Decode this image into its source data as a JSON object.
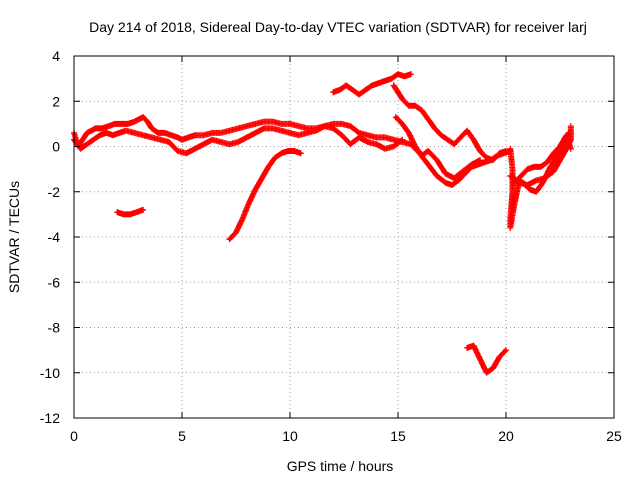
{
  "chart_data": {
    "type": "scatter",
    "title": "Day 214 of 2018, Sidereal Day-to-day VTEC variation (SDTVAR) for receiver larj",
    "xlabel": "GPS time / hours",
    "ylabel": "SDTVAR / TECUs",
    "xlim": [
      0,
      25
    ],
    "ylim": [
      -12,
      4
    ],
    "xticks": [
      0,
      5,
      10,
      15,
      20,
      25
    ],
    "yticks": [
      -12,
      -10,
      -8,
      -6,
      -4,
      -2,
      0,
      2,
      4
    ],
    "grid": true,
    "marker": "+",
    "series": [
      {
        "name": "SDTVAR",
        "color": "#ff0000",
        "segments": [
          [
            [
              0.0,
              0.6
            ],
            [
              0.2,
              0.0
            ],
            [
              0.4,
              0.3
            ],
            [
              0.6,
              0.6
            ],
            [
              0.8,
              0.7
            ],
            [
              1.0,
              0.8
            ],
            [
              1.3,
              0.8
            ],
            [
              1.6,
              0.9
            ],
            [
              1.9,
              1.0
            ],
            [
              2.2,
              1.0
            ],
            [
              2.5,
              1.0
            ],
            [
              2.8,
              1.1
            ],
            [
              3.0,
              1.2
            ],
            [
              3.2,
              1.3
            ],
            [
              3.4,
              1.1
            ],
            [
              3.6,
              0.8
            ],
            [
              3.9,
              0.6
            ],
            [
              4.2,
              0.6
            ],
            [
              4.5,
              0.5
            ],
            [
              4.8,
              0.4
            ],
            [
              5.0,
              0.3
            ],
            [
              5.3,
              0.4
            ],
            [
              5.6,
              0.5
            ],
            [
              6.0,
              0.5
            ],
            [
              6.4,
              0.6
            ],
            [
              6.8,
              0.6
            ],
            [
              7.2,
              0.7
            ],
            [
              7.6,
              0.8
            ],
            [
              8.0,
              0.9
            ],
            [
              8.4,
              1.0
            ],
            [
              8.8,
              1.1
            ],
            [
              9.2,
              1.1
            ],
            [
              9.6,
              1.0
            ],
            [
              10.0,
              1.0
            ],
            [
              10.4,
              0.9
            ],
            [
              10.8,
              0.8
            ],
            [
              11.2,
              0.8
            ],
            [
              11.6,
              0.9
            ],
            [
              12.0,
              1.0
            ],
            [
              12.4,
              1.0
            ],
            [
              12.8,
              0.9
            ],
            [
              13.2,
              0.6
            ],
            [
              13.6,
              0.5
            ],
            [
              14.0,
              0.4
            ],
            [
              14.4,
              0.4
            ],
            [
              14.8,
              0.3
            ],
            [
              15.2,
              0.2
            ],
            [
              15.6,
              0.1
            ],
            [
              16.0,
              -0.3
            ],
            [
              16.4,
              -0.8
            ],
            [
              16.8,
              -1.3
            ],
            [
              17.2,
              -1.6
            ],
            [
              17.5,
              -1.7
            ],
            [
              17.8,
              -1.5
            ],
            [
              18.1,
              -1.2
            ],
            [
              18.4,
              -0.9
            ],
            [
              18.7,
              -0.8
            ],
            [
              19.0,
              -0.7
            ],
            [
              19.3,
              -0.6
            ],
            [
              19.6,
              -0.4
            ],
            [
              19.9,
              -0.3
            ],
            [
              20.2,
              -0.2
            ]
          ],
          [
            [
              0.0,
              0.3
            ],
            [
              0.3,
              -0.1
            ],
            [
              0.6,
              0.1
            ],
            [
              0.9,
              0.3
            ],
            [
              1.2,
              0.5
            ],
            [
              1.5,
              0.6
            ],
            [
              1.8,
              0.5
            ],
            [
              2.1,
              0.6
            ],
            [
              2.4,
              0.7
            ],
            [
              2.8,
              0.6
            ],
            [
              3.2,
              0.5
            ],
            [
              3.6,
              0.4
            ],
            [
              4.0,
              0.3
            ],
            [
              4.4,
              0.2
            ],
            [
              4.8,
              -0.2
            ],
            [
              5.2,
              -0.3
            ],
            [
              5.6,
              -0.1
            ],
            [
              6.0,
              0.1
            ],
            [
              6.4,
              0.3
            ],
            [
              6.8,
              0.2
            ],
            [
              7.2,
              0.1
            ],
            [
              7.6,
              0.2
            ],
            [
              8.0,
              0.4
            ],
            [
              8.4,
              0.6
            ],
            [
              8.8,
              0.8
            ],
            [
              9.2,
              0.8
            ],
            [
              9.6,
              0.7
            ],
            [
              10.0,
              0.6
            ],
            [
              10.4,
              0.5
            ],
            [
              10.8,
              0.6
            ],
            [
              11.2,
              0.7
            ],
            [
              11.6,
              0.9
            ],
            [
              12.0,
              0.8
            ],
            [
              12.4,
              0.5
            ],
            [
              12.8,
              0.1
            ],
            [
              13.2,
              0.4
            ],
            [
              13.6,
              0.2
            ],
            [
              14.0,
              0.1
            ],
            [
              14.4,
              -0.1
            ],
            [
              14.8,
              0.0
            ],
            [
              15.2,
              0.3
            ]
          ],
          [
            [
              2.0,
              -2.9
            ],
            [
              2.3,
              -3.0
            ],
            [
              2.6,
              -3.0
            ],
            [
              2.9,
              -2.9
            ],
            [
              3.2,
              -2.8
            ]
          ],
          [
            [
              7.2,
              -4.1
            ],
            [
              7.5,
              -3.8
            ],
            [
              7.8,
              -3.2
            ],
            [
              8.1,
              -2.5
            ],
            [
              8.4,
              -1.9
            ],
            [
              8.7,
              -1.4
            ],
            [
              9.0,
              -0.9
            ],
            [
              9.3,
              -0.5
            ],
            [
              9.6,
              -0.3
            ],
            [
              9.9,
              -0.2
            ],
            [
              10.2,
              -0.2
            ],
            [
              10.5,
              -0.3
            ]
          ],
          [
            [
              12.0,
              2.4
            ],
            [
              12.3,
              2.5
            ],
            [
              12.6,
              2.7
            ],
            [
              12.9,
              2.5
            ],
            [
              13.2,
              2.3
            ],
            [
              13.5,
              2.5
            ],
            [
              13.8,
              2.7
            ],
            [
              14.1,
              2.8
            ],
            [
              14.4,
              2.9
            ],
            [
              14.7,
              3.0
            ],
            [
              15.0,
              3.2
            ],
            [
              15.3,
              3.1
            ],
            [
              15.6,
              3.2
            ]
          ],
          [
            [
              14.8,
              2.7
            ],
            [
              15.0,
              2.4
            ],
            [
              15.2,
              2.1
            ],
            [
              15.5,
              1.8
            ],
            [
              15.8,
              1.8
            ],
            [
              16.1,
              1.6
            ],
            [
              16.4,
              1.2
            ],
            [
              16.7,
              0.8
            ],
            [
              17.0,
              0.5
            ],
            [
              17.3,
              0.3
            ],
            [
              17.6,
              0.1
            ],
            [
              17.9,
              0.4
            ],
            [
              18.2,
              0.7
            ],
            [
              18.5,
              0.3
            ],
            [
              18.8,
              -0.2
            ],
            [
              19.1,
              -0.5
            ],
            [
              19.4,
              -0.6
            ],
            [
              19.7,
              -0.3
            ],
            [
              20.0,
              -0.2
            ]
          ],
          [
            [
              14.9,
              1.3
            ],
            [
              15.2,
              1.0
            ],
            [
              15.5,
              0.6
            ],
            [
              15.8,
              0.0
            ],
            [
              16.1,
              -0.4
            ],
            [
              16.4,
              -0.2
            ],
            [
              16.8,
              -0.6
            ],
            [
              17.2,
              -1.2
            ],
            [
              17.6,
              -1.4
            ],
            [
              18.0,
              -1.1
            ],
            [
              18.4,
              -0.8
            ],
            [
              18.8,
              -0.6
            ]
          ],
          [
            [
              18.2,
              -8.9
            ],
            [
              18.5,
              -8.8
            ],
            [
              18.8,
              -9.4
            ],
            [
              19.1,
              -10.0
            ],
            [
              19.4,
              -9.8
            ],
            [
              19.7,
              -9.3
            ],
            [
              20.0,
              -9.0
            ]
          ],
          [
            [
              20.2,
              -0.1
            ],
            [
              20.3,
              -1.0
            ],
            [
              20.3,
              -2.0
            ],
            [
              20.2,
              -3.2
            ],
            [
              20.2,
              -3.6
            ],
            [
              20.4,
              -2.5
            ],
            [
              20.6,
              -1.6
            ],
            [
              21.0,
              -1.7
            ],
            [
              21.4,
              -1.5
            ],
            [
              21.8,
              -1.4
            ],
            [
              22.2,
              -1.1
            ],
            [
              22.5,
              -0.6
            ],
            [
              22.8,
              -0.1
            ],
            [
              23.0,
              0.3
            ],
            [
              23.0,
              0.9
            ]
          ],
          [
            [
              20.2,
              -1.3
            ],
            [
              20.5,
              -1.5
            ],
            [
              20.8,
              -1.6
            ],
            [
              21.1,
              -1.9
            ],
            [
              21.4,
              -2.0
            ],
            [
              21.7,
              -1.6
            ],
            [
              22.0,
              -1.0
            ],
            [
              22.3,
              -0.5
            ],
            [
              22.6,
              0.0
            ],
            [
              22.9,
              0.6
            ]
          ],
          [
            [
              20.4,
              -1.6
            ],
            [
              20.7,
              -1.3
            ],
            [
              21.0,
              -1.0
            ],
            [
              21.3,
              -0.9
            ],
            [
              21.6,
              -0.9
            ],
            [
              21.9,
              -0.7
            ],
            [
              22.2,
              -0.3
            ],
            [
              22.5,
              0.0
            ],
            [
              22.8,
              0.5
            ],
            [
              23.0,
              -0.1
            ]
          ]
        ]
      }
    ]
  }
}
